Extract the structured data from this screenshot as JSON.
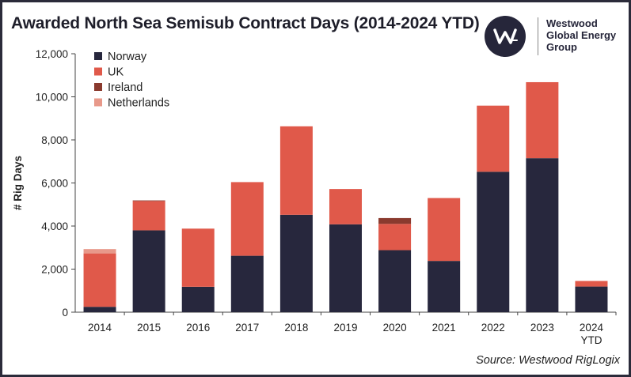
{
  "header": {
    "title": "Awarded North Sea Semisub Contract Days (2014-2024 YTD)"
  },
  "logo": {
    "line1": "Westwood",
    "line2": "Global Energy",
    "line3": "Group",
    "color": "#26263a"
  },
  "footer": {
    "source": "Source: Westwood RigLogix"
  },
  "chart_data": {
    "type": "bar",
    "stacked": true,
    "title": "Awarded North Sea Semisub Contract Days (2014-2024 YTD)",
    "xlabel": "",
    "ylabel": "# Rig Days",
    "ylim": [
      0,
      12000
    ],
    "yticks": [
      0,
      2000,
      4000,
      6000,
      8000,
      10000,
      12000
    ],
    "ytick_labels": [
      "0",
      "2,000",
      "4,000",
      "6,000",
      "8,000",
      "10,000",
      "12,000"
    ],
    "grid": false,
    "legend_position": "top-left",
    "categories": [
      "2014",
      "2015",
      "2016",
      "2017",
      "2018",
      "2019",
      "2020",
      "2021",
      "2022",
      "2023",
      "2024 YTD"
    ],
    "category_lines": [
      [
        "2014"
      ],
      [
        "2015"
      ],
      [
        "2016"
      ],
      [
        "2017"
      ],
      [
        "2018"
      ],
      [
        "2019"
      ],
      [
        "2020"
      ],
      [
        "2021"
      ],
      [
        "2022"
      ],
      [
        "2023"
      ],
      [
        "2024",
        "YTD"
      ]
    ],
    "series": [
      {
        "name": "Norway",
        "color": "#27273d",
        "values": [
          250,
          3800,
          1180,
          2620,
          4520,
          4080,
          2880,
          2380,
          6520,
          7150,
          1190
        ]
      },
      {
        "name": "UK",
        "color": "#e0594a",
        "values": [
          2480,
          1360,
          2700,
          3420,
          4110,
          1640,
          1220,
          2920,
          3070,
          3530,
          260
        ]
      },
      {
        "name": "Ireland",
        "color": "#8a3a2e",
        "values": [
          0,
          30,
          0,
          0,
          0,
          0,
          270,
          0,
          0,
          0,
          0
        ]
      },
      {
        "name": "Netherlands",
        "color": "#e8998a",
        "values": [
          200,
          0,
          0,
          0,
          0,
          0,
          0,
          0,
          0,
          0,
          0
        ]
      }
    ]
  }
}
